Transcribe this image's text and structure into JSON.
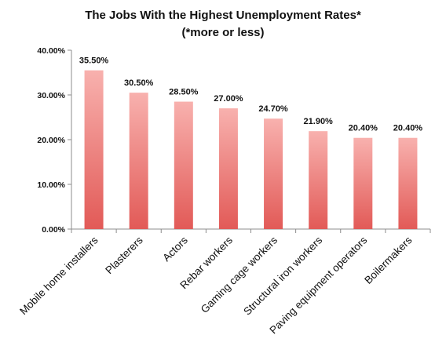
{
  "chart_data": {
    "type": "bar",
    "title": "The Jobs With the Highest Unemployment Rates*",
    "subtitle": "(*more or less)",
    "categories": [
      "Mobile home installers",
      "Plasterers",
      "Actors",
      "Rebar workers",
      "Gaming cage workers",
      "Structural iron workers",
      "Paving equipment operators",
      "Boilermakers"
    ],
    "values": [
      35.5,
      30.5,
      28.5,
      27.0,
      24.7,
      21.9,
      20.4,
      20.4
    ],
    "data_labels": [
      "35.50%",
      "30.50%",
      "28.50%",
      "27.00%",
      "24.70%",
      "21.90%",
      "20.40%",
      "20.40%"
    ],
    "ylim": [
      0,
      40
    ],
    "yticks": [
      0,
      10,
      20,
      30,
      40
    ],
    "ytick_labels": [
      "0.00%",
      "10.00%",
      "20.00%",
      "30.00%",
      "40.00%"
    ],
    "xlabel": "",
    "ylabel": "",
    "grid": false,
    "legend": false,
    "colors": {
      "bar_top": "#f8b1ae",
      "bar_bottom": "#e25a57",
      "axis": "#8c8c8c"
    }
  }
}
